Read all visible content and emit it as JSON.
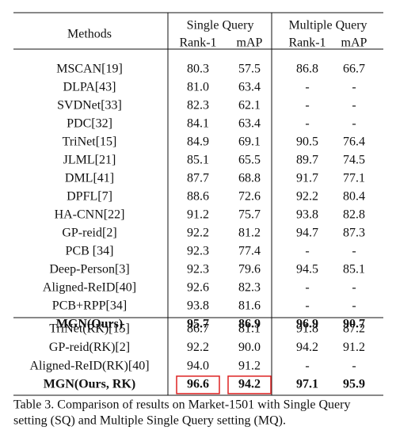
{
  "table": {
    "header": {
      "methods": "Methods",
      "groups": [
        "Single Query",
        "Multiple Query"
      ],
      "subcolumns": [
        "Rank-1",
        "mAP",
        "Rank-1",
        "mAP"
      ]
    },
    "sections": [
      {
        "rows": [
          [
            "MSCAN[19]",
            "80.3",
            "57.5",
            "86.8",
            "66.7"
          ],
          [
            "DLPA[43]",
            "81.0",
            "63.4",
            "-",
            "-"
          ],
          [
            "SVDNet[33]",
            "82.3",
            "62.1",
            "-",
            "-"
          ],
          [
            "PDC[32]",
            "84.1",
            "63.4",
            "-",
            "-"
          ],
          [
            "TriNet[15]",
            "84.9",
            "69.1",
            "90.5",
            "76.4"
          ],
          [
            "JLML[21]",
            "85.1",
            "65.5",
            "89.7",
            "74.5"
          ],
          [
            "DML[41]",
            "87.7",
            "68.8",
            "91.7",
            "77.1"
          ],
          [
            "DPFL[7]",
            "88.6",
            "72.6",
            "92.2",
            "80.4"
          ],
          [
            "HA-CNN[22]",
            "91.2",
            "75.7",
            "93.8",
            "82.8"
          ],
          [
            "GP-reid[2]",
            "92.2",
            "81.2",
            "94.7",
            "87.3"
          ],
          [
            "PCB [34]",
            "92.3",
            "77.4",
            "-",
            "-"
          ],
          [
            "Deep-Person[3]",
            "92.3",
            "79.6",
            "94.5",
            "85.1"
          ],
          [
            "Aligned-ReID[40]",
            "92.6",
            "82.3",
            "-",
            "-"
          ],
          [
            "PCB+RPP[34]",
            "93.8",
            "81.6",
            "-",
            "-"
          ],
          [
            "MGN(Ours)",
            "95.7",
            "86.9",
            "96.9",
            "90.7"
          ]
        ]
      },
      {
        "rows": [
          [
            "TriNet(RK)[15]",
            "86.7",
            "81.1",
            "91.8",
            "87.2"
          ],
          [
            "GP-reid(RK)[2]",
            "92.2",
            "90.0",
            "94.2",
            "91.2"
          ],
          [
            "Aligned-ReID(RK)[40]",
            "94.0",
            "91.2",
            "-",
            "-"
          ],
          [
            "MGN(Ours, RK)",
            "96.6",
            "94.2",
            "97.1",
            "95.9"
          ]
        ]
      }
    ]
  },
  "caption": [
    "Table 3. Comparison of results on Market-1501 with Single Query",
    "setting (SQ) and Multiple Single Query setting (MQ)."
  ]
}
